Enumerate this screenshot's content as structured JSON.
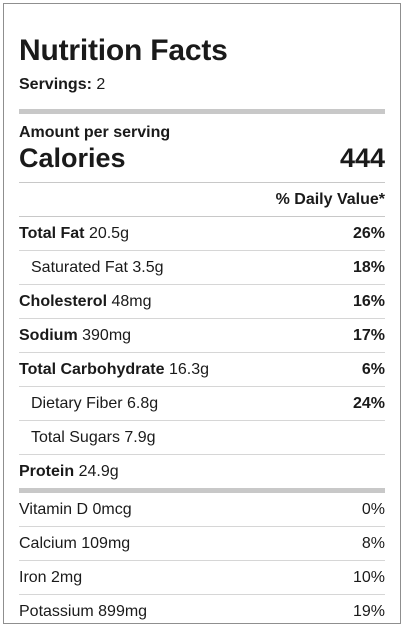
{
  "title": "Nutrition Facts",
  "servings": {
    "label": "Servings:",
    "value": "2"
  },
  "amount_per_serving": "Amount per serving",
  "calories": {
    "label": "Calories",
    "value": "444"
  },
  "daily_value_header": "% Daily Value*",
  "nutrients": [
    {
      "name": "Total Fat",
      "amount": "20.5g",
      "dv": "26%"
    },
    {
      "name": "Saturated Fat",
      "amount": "3.5g",
      "dv": "18%"
    },
    {
      "name": "Cholesterol",
      "amount": "48mg",
      "dv": "16%"
    },
    {
      "name": "Sodium",
      "amount": "390mg",
      "dv": "17%"
    },
    {
      "name": "Total Carbohydrate",
      "amount": "16.3g",
      "dv": "6%"
    },
    {
      "name": "Dietary Fiber",
      "amount": "6.8g",
      "dv": "24%"
    },
    {
      "name": "Total Sugars",
      "amount": "7.9g",
      "dv": ""
    },
    {
      "name": "Protein",
      "amount": "24.9g",
      "dv": ""
    }
  ],
  "vitamins": [
    {
      "name": "Vitamin D",
      "amount": "0mcg",
      "dv": "0%"
    },
    {
      "name": "Calcium",
      "amount": "109mg",
      "dv": "8%"
    },
    {
      "name": "Iron",
      "amount": "2mg",
      "dv": "10%"
    },
    {
      "name": "Potassium",
      "amount": "899mg",
      "dv": "19%"
    }
  ]
}
